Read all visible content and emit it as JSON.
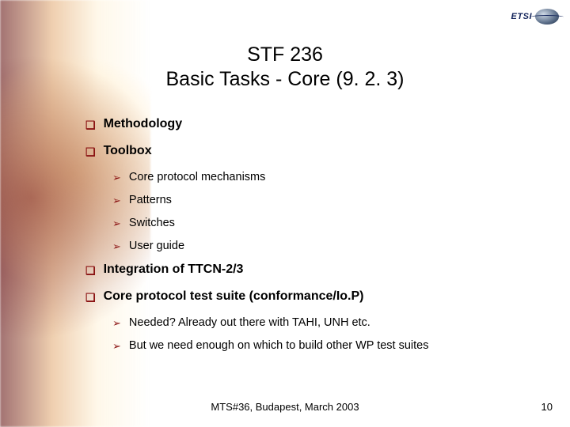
{
  "logo": {
    "text": "ETSI"
  },
  "title": {
    "line1": "STF 236",
    "line2": "Basic Tasks - Core (9. 2. 3)"
  },
  "bullets": {
    "b1": "Methodology",
    "b2": "Toolbox",
    "b2_1": "Core protocol mechanisms",
    "b2_2": "Patterns",
    "b2_3": "Switches",
    "b2_4": "User guide",
    "b3": "Integration of TTCN-2/3",
    "b4": "Core protocol test suite (conformance/Io.P)",
    "b4_1": "Needed? Already out there with TAHI, UNH etc.",
    "b4_2": "But we need enough on which to build other WP test suites"
  },
  "footer": "MTS#36, Budapest, March 2003",
  "page": "10",
  "colors": {
    "bullet": "#8a1212",
    "text": "#000000",
    "logo_text": "#12235a"
  },
  "glyphs": {
    "square": "❑",
    "arrow": "➢"
  }
}
